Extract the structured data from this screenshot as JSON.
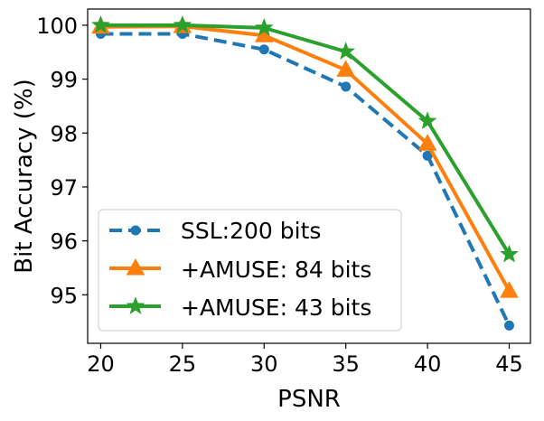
{
  "chart_data": {
    "type": "line",
    "title": "",
    "xlabel": "PSNR",
    "ylabel": "Bit Accuracy (%)",
    "x": [
      20,
      25,
      30,
      35,
      40,
      45
    ],
    "xticks": [
      "20",
      "25",
      "30",
      "35",
      "40",
      "45"
    ],
    "yticks": [
      "95",
      "96",
      "97",
      "98",
      "99",
      "100"
    ],
    "xlim": [
      19.2,
      46.3
    ],
    "ylim": [
      94.1,
      100.3
    ],
    "grid": false,
    "legend_position": "lower-left",
    "series": [
      {
        "name": "SSL:200 bits",
        "values": [
          99.84,
          99.84,
          99.55,
          98.86,
          97.58,
          94.43
        ],
        "color": "#1f77b4",
        "linestyle": "dashed",
        "marker": "circle"
      },
      {
        "name": "+AMUSE: 84 bits",
        "values": [
          99.97,
          99.98,
          99.81,
          99.17,
          97.8,
          95.07
        ],
        "color": "#ff7f0e",
        "linestyle": "solid",
        "marker": "triangle"
      },
      {
        "name": "+AMUSE: 43 bits",
        "values": [
          100.0,
          100.0,
          99.95,
          99.51,
          98.22,
          95.75
        ],
        "color": "#2ca02c",
        "linestyle": "solid",
        "marker": "star"
      }
    ]
  }
}
